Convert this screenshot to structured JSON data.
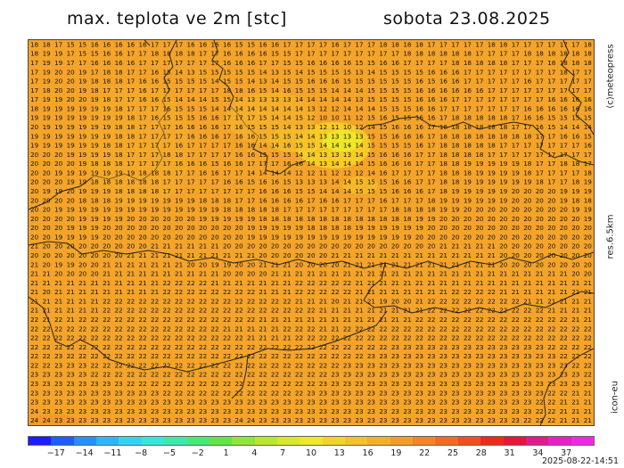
{
  "header": {
    "title_left": "max. teplota ve 2m [stc]",
    "title_right": "sobota 23.08.2025"
  },
  "side_labels": {
    "copyright": "(c)meteopress",
    "resolution": "res.6.5km",
    "model": "icon-eu"
  },
  "timestamp": "2025-08-22-14:51",
  "map": {
    "background_color": "#f4a42a",
    "border_color": "#222222",
    "value_rows": [
      "18 18 17 15 15 16 16 16 16 16 17 17 17 16 16 16 16 15 15 16 16 17 17 17 17 16 17 17 17 18 18 18 18 17 17 17 17 17 18 18 17 17 17 17 17 17 18",
      "18 19 19 17 15 15 16 16 17 17 18 18 18 18 17 17 16 16 16 16 15 15 17 17 17 17 17 17 17 17 17 18 18 18 18 18 18 17 17 17 17 18 18 18 18 18 18",
      "17 19 19 17 17 16 16 16 16 17 17 17 17 17 17 17 16 16 16 17 17 15 15 16 16 16 16 15 15 16 16 17 17 17 17 18 18 18 18 18 17 17 17 18 18 18 18",
      "17 19 20 20 19 17 18 18 17 17 16 15 14 13 15 15 15 15 15 14 13 15 14 15 15 15 15 13 14 15 15 15 15 16 16 16 17 17 17 17 17 17 17 17 18 17 17",
      "17 19 20 20 19 18 18 18 17 16 16 15 15 15 15 14 15 15 14 13 14 15 15 16 16 16 15 15 15 15 15 15 16 15 16 16 17 17 17 17 17 16 17 17 17 17 17",
      "17 18 20 20 19 18 17 17 17 16 17 17 17 17 17 17 18 18 16 15 14 16 15 15 15 14 14 14 15 15 15 15 16 16 16 16 16 16 17 17 17 17 17 17 17 17 17",
      "17 19 19 20 20 19 18 17 17 16 16 15 14 14 14 15 15 14 13 13 13 13 14 14 14 14 14 13 15 15 15 15 16 16 16 17 17 17 17 17 17 17 17 16 16 16 16",
      "18 19 19 19 19 19 19 18 17 17 17 16 15 15 15 14 14 14 14 14 14 14 14 13 12 12 14 14 14 15 15 15 16 16 17 17 17 17 17 17 17 16 16 16 16 16 16",
      "19 19 19 19 19 19 19 19 18 17 16 15 15 15 16 16 17 17 17 15 14 14 15 12 10 10 11 12 15 16 15 15 16 16 17 18 18 18 18 18 17 16 16 15 15 15 15",
      "20 19 19 19 19 19 19 18 18 17 17 17 16 16 16 16 17 16 15 15 15 14 13 13 12 11 10 12 14 15 16 16 16 17 18 18 18 18 18 18 17 17 16 15 14 14 14",
      "19 19 19 19 19 19 19 18 18 17 17 17 17 16 16 16 17 16 16 15 15 15 14 14 13 13 13 13 15 15 16 16 16 17 18 18 18 18 18 18 18 18 17 17 16 16 15",
      "19 19 19 19 19 19 18 18 17 17 17 17 16 17 17 17 17 16 16 14 14 16 15 15 14 14 14 14 15 15 15 15 16 17 18 18 18 18 18 17 17 17 17 17 17 17 16",
      "20 20 20 19 19 19 19 18 17 17 17 18 18 17 17 17 17 16 16 15 15 15 14 14 13 13 13 14 15 16 16 16 17 17 18 18 18 18 17 17 17 17 17 17 17 17 17",
      "20 20 20 20 19 18 18 18 17 17 17 17 16 16 16 15 16 16 17 17 17 16 16 14 13 14 14 14 15 16 16 16 17 17 18 18 19 19 19 19 19 18 17 17 18 18 17",
      "20 20 19 19 19 19 19 19 19 18 18 18 17 17 16 16 17 17 14 14 14 14 12 12 11 12 12 12 14 16 17 17 17 17 18 18 18 19 19 19 19 18 17 17 17 17 18",
      "20 20 20 19 19 18 18 18 18 18 18 17 17 17 17 17 16 16 15 16 16 15 13 13 13 14 14 15 15 15 16 16 17 17 18 18 19 19 19 19 19 19 18 17 17 18 19",
      "20 19 19 20 19 19 19 18 18 18 18 17 17 17 17 17 17 17 17 16 16 16 15 15 14 14 14 15 15 15 16 16 16 17 18 19 19 19 19 19 20 20 20 20 19 19 19",
      "20 20 20 20 18 18 18 19 19 19 19 19 19 19 18 18 18 17 17 16 16 16 16 17 16 16 17 17 17 16 17 17 17 18 19 19 19 19 19 19 20 20 20 20 19 18 18",
      "20 20 19 19 19 19 19 19 19 19 19 19 19 19 19 19 18 18 18 18 18 17 17 17 17 17 17 17 17 17 18 18 18 18 19 19 20 20 20 20 20 20 20 20 20 19 19",
      "20 20 20 20 19 19 19 19 20 20 20 20 20 20 19 19 19 19 19 18 18 18 18 18 18 18 18 18 18 18 18 18 19 19 20 20 20 20 20 20 20 20 20 20 20 20 19",
      "20 20 20 19 19 19 20 20 20 20 20 20 20 20 20 20 20 20 19 19 19 19 19 18 18 18 18 19 19 19 19 19 19 20 20 20 20 20 20 20 20 20 20 20 20 20 20",
      "20 20 19 19 19 19 20 20 20 20 20 20 20 20 20 20 20 20 19 19 19 19 19 19 19 19 19 19 19 19 19 19 20 20 20 20 20 20 20 20 20 20 20 20 20 20 20",
      "21 20 20 20 20 20 20 20 20 20 21 21 21 21 21 21 20 20 20 20 20 20 20 20 20 20 20 20 20 20 20 20 20 20 21 21 21 21 21 20 20 20 20 20 20 20 20",
      "20 20 20 20 20 20 20 20 21 21 21 21 21 21 21 21 21 21 21 20 20 20 20 20 20 21 21 21 21 21 21 21 21 21 21 21 21 21 21 20 20 20 20 20 20 20 20",
      "21 20 19 19 20 20 21 21 21 21 21 21 21 20 20 19 19 20 20 21 21 21 20 20 20 20 21 21 21 21 21 21 21 21 21 21 21 21 21 20 20 20 20 20 20 20 20",
      "21 21 20 20 20 20 21 21 21 21 21 21 21 21 21 21 20 20 20 20 21 21 21 21 21 21 21 21 21 21 21 21 21 21 21 21 21 21 21 21 21 21 21 21 21 20 20",
      "21 21 21 21 21 21 21 21 21 21 21 22 22 22 22 21 21 21 21 21 21 21 22 22 22 22 22 21 21 21 21 21 21 21 21 21 21 21 21 21 21 21 21 21 21 21 21",
      "21 20 21 21 21 21 21 21 21 21 21 22 22 22 22 22 22 22 22 21 21 21 22 22 22 22 22 21 21 21 21 21 21 21 21 22 22 22 22 21 21 21 21 21 21 21 21",
      "21 21 21 21 21 21 22 22 22 22 22 22 22 22 22 22 22 22 22 22 22 22 21 21 21 20 21 21 21 19 20 20 21 22 22 22 22 22 22 22 22 21 21 21 21 21 21",
      "21 21 21 21 21 21 22 22 22 22 22 22 22 22 22 22 22 22 22 22 22 22 22 22 21 21 21 21 21 21 21 21 21 22 22 22 22 22 22 22 22 22 22 21 21 21 21",
      "22 21 22 21 22 22 22 22 22 22 22 22 22 22 22 22 22 22 22 21 21 21 21 21 21 21 21 21 21 21 21 21 22 22 22 22 22 22 22 22 22 22 22 22 22 21 21",
      "22 22 22 22 22 22 22 22 22 22 22 22 22 22 22 22 21 21 21 21 21 22 22 22 21 21 22 22 22 22 22 22 22 22 22 22 22 22 22 22 22 22 22 22 22 22 22",
      "22 22 22 22 22 22 22 22 22 22 22 22 22 22 22 22 22 22 21 21 21 21 22 22 22 22 22 22 22 22 22 22 22 22 22 22 22 22 22 22 22 22 22 22 22 22 22",
      "22 22 22 22 22 22 22 22 22 22 22 22 22 22 22 22 22 22 22 22 22 22 22 22 22 22 22 22 22 22 23 23 23 23 23 23 23 23 23 23 23 23 23 22 22 22 22",
      "22 22 23 22 22 22 22 22 22 22 22 22 22 22 22 22 22 22 22 22 22 22 22 22 22 22 22 22 23 23 23 23 23 23 23 23 23 23 23 23 23 23 23 23 22 22 22",
      "22 22 23 23 23 22 22 22 22 22 22 22 22 22 22 22 22 22 22 22 22 22 22 22 22 22 23 23 23 23 23 23 23 23 23 23 23 23 23 23 23 23 23 23 23 22 22",
      "23 23 23 23 23 22 22 22 22 22 22 22 22 22 22 22 22 22 22 22 22 22 22 22 22 23 23 23 23 23 23 23 23 23 23 23 23 23 23 23 23 23 23 23 23 23 22",
      "23 23 23 23 23 23 23 23 22 22 22 22 22 22 22 22 22 22 22 22 22 22 22 22 23 23 23 23 23 23 23 23 23 23 23 23 23 23 23 23 23 23 23 23 23 23 23",
      "23 23 23 23 23 23 23 23 23 23 23 22 22 22 22 22 22 22 22 22 22 22 22 23 23 23 23 23 23 23 23 23 23 23 23 23 23 23 23 23 23 23 23 22 22 21 21",
      "23 23 23 23 23 23 23 23 23 23 23 23 23 23 23 23 23 23 23 23 23 23 23 23 23 23 23 23 23 23 23 23 23 23 23 23 23 23 23 23 23 23 22 22 21 21 21",
      "24 23 23 23 23 23 23 23 23 23 23 23 23 23 23 23 23 23 23 23 23 23 23 23 23 23 23 23 23 23 23 23 23 23 23 23 23 23 23 23 23 23 22 22 21 21 21",
      "24 24 23 23 23 23 23 23 23 23 23 23 23 23 23 23 23 24 24 23 23 23 23 23 23 23 23 23 23 23 23 23 23 23 23 23 23 23 23 23 23 22 22 22 21 21 21"
    ]
  },
  "colorbar": {
    "colors": [
      "#1c1cff",
      "#1f5cff",
      "#2590ff",
      "#2db6ff",
      "#32d3f5",
      "#36e6d8",
      "#3de9a8",
      "#45ea78",
      "#5ee645",
      "#8fe63a",
      "#b8e82e",
      "#d8e82a",
      "#eee72a",
      "#f3d22a",
      "#f4c12a",
      "#f4b02a",
      "#f59c28",
      "#f58426",
      "#f56a22",
      "#f24e1e",
      "#ee2a1a",
      "#e4163a",
      "#e21a8a",
      "#ea1ec8",
      "#f028e6"
    ],
    "labels": [
      "−17",
      "−14",
      "−11",
      "−8",
      "−5",
      "−2",
      "1",
      "4",
      "7",
      "10",
      "13",
      "16",
      "19",
      "22",
      "25",
      "28",
      "31",
      "34",
      "37"
    ]
  }
}
